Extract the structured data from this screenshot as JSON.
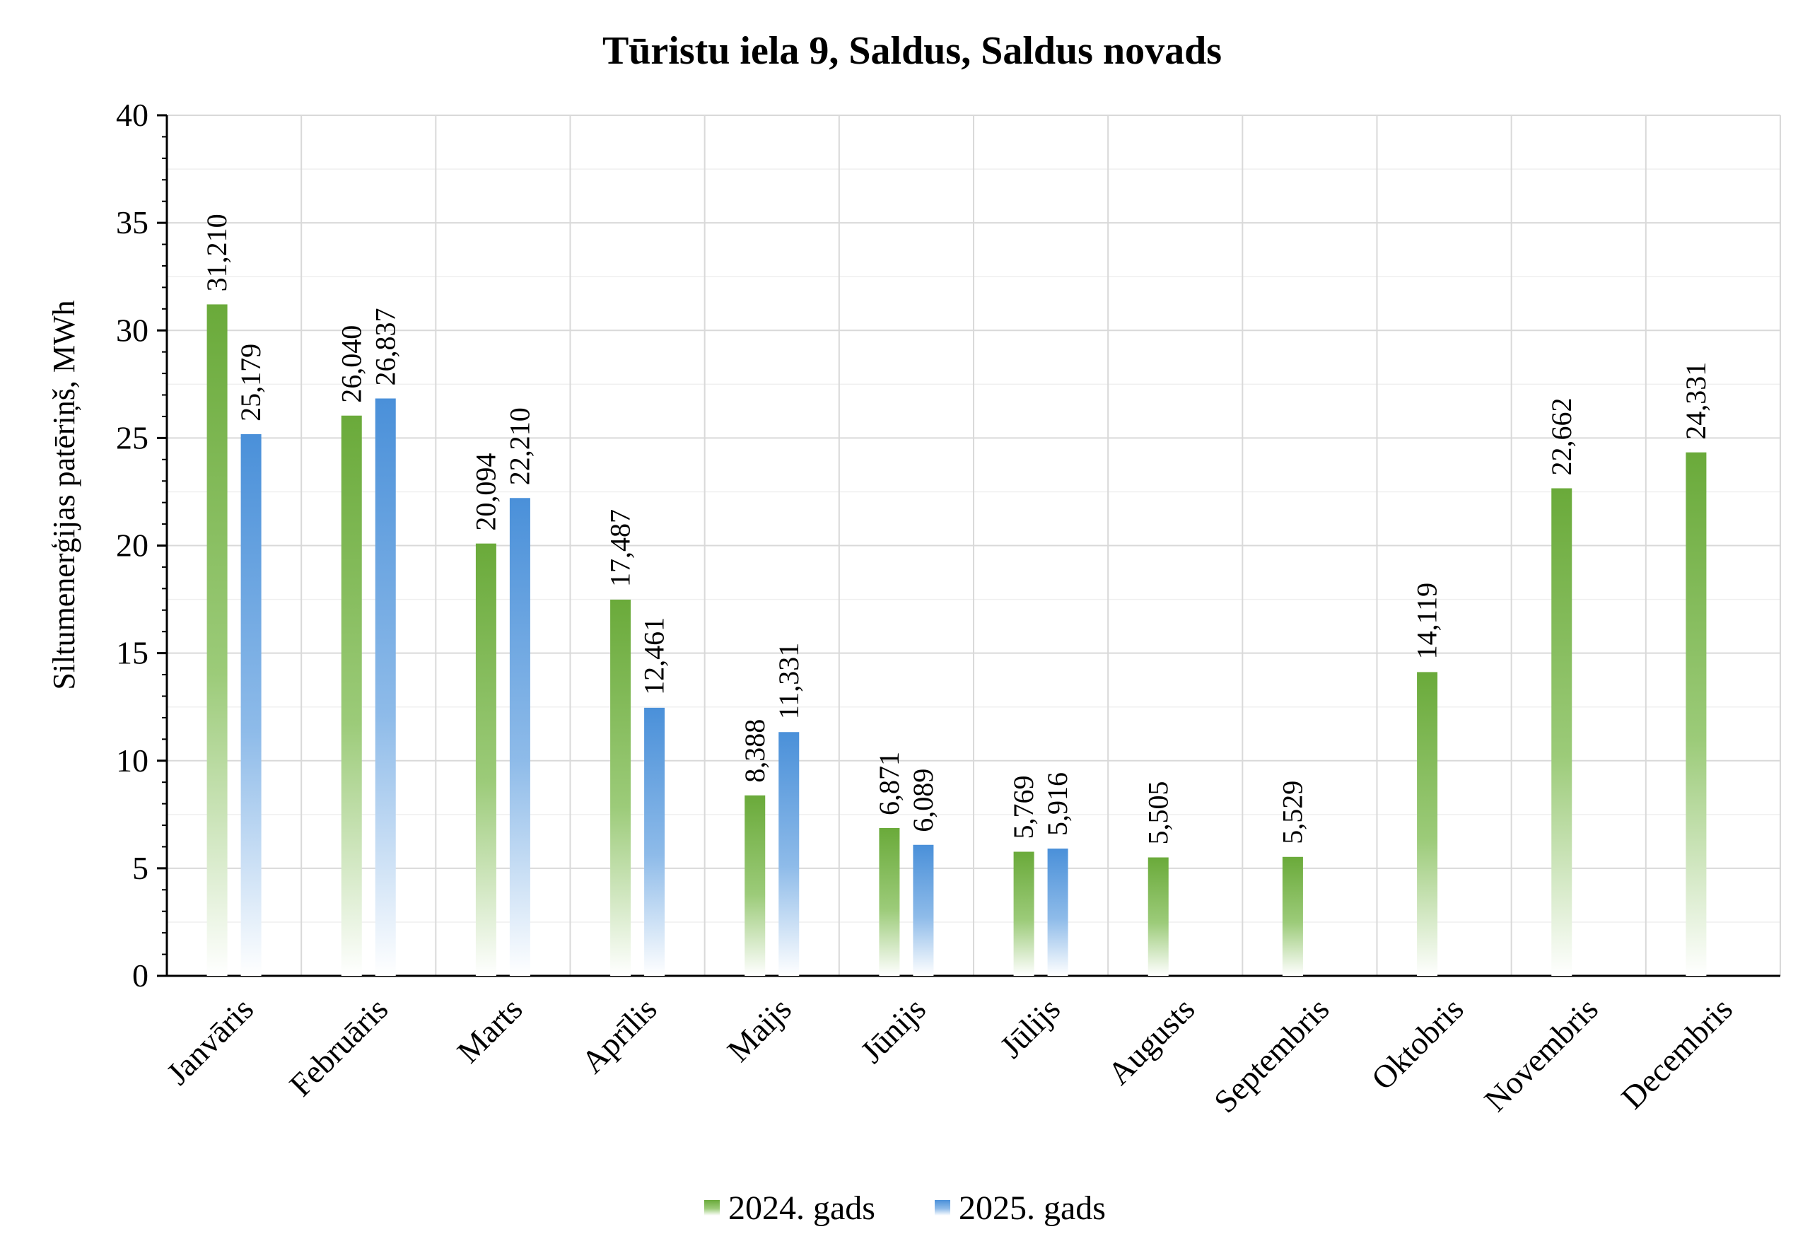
{
  "chart_data": {
    "type": "bar",
    "title": "Tūristu iela 9, Saldus, Saldus novads",
    "ylabel": "Siltumenerģijas patēriņš, MWh",
    "xlabel": "",
    "ylim": [
      0,
      40
    ],
    "yticks": [
      0,
      5,
      10,
      15,
      20,
      25,
      30,
      35,
      40
    ],
    "grid": true,
    "legend_position": "bottom",
    "categories": [
      "Janvāris",
      "Februāris",
      "Marts",
      "Aprīlis",
      "Maijs",
      "Jūnijs",
      "Jūlijs",
      "Augusts",
      "Septembris",
      "Oktobris",
      "Novembris",
      "Decembris"
    ],
    "series": [
      {
        "name": "2024. gads",
        "color": "#6aaa3a",
        "values": [
          31.21,
          26.04,
          20.094,
          17.487,
          8.388,
          6.871,
          5.769,
          5.505,
          5.529,
          14.119,
          22.662,
          24.331
        ],
        "labels": [
          "31,210",
          "26,040",
          "20,094",
          "17,487",
          "8,388",
          "6,871",
          "5,769",
          "5,505",
          "5,529",
          "14,119",
          "22,662",
          "24,331"
        ]
      },
      {
        "name": "2025. gads",
        "color": "#4a90d9",
        "values": [
          25.179,
          26.837,
          22.21,
          12.461,
          11.331,
          6.089,
          5.916,
          null,
          null,
          null,
          null,
          null
        ],
        "labels": [
          "25,179",
          "26,837",
          "22,210",
          "12,461",
          "11,331",
          "6,089",
          "5,916",
          null,
          null,
          null,
          null,
          null
        ]
      }
    ]
  }
}
